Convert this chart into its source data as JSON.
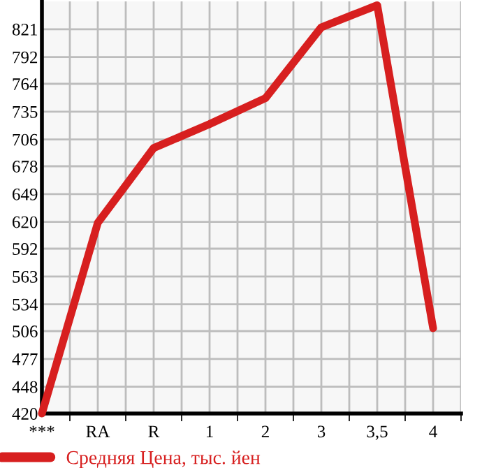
{
  "chart_data": {
    "type": "line",
    "categories": [
      "***",
      "RA",
      "R",
      "1",
      "2",
      "3",
      "3,5",
      "4"
    ],
    "series": [
      {
        "name": "Средняя Цена, тыс. йен",
        "color": "#d71f1f",
        "values": [
          420,
          619,
          697,
          722,
          749,
          823,
          846,
          509
        ]
      }
    ],
    "ylim": [
      420,
      850
    ],
    "yticks": [
      420,
      448,
      477,
      506,
      534,
      563,
      592,
      620,
      649,
      678,
      706,
      735,
      764,
      792,
      821
    ],
    "grid": true,
    "legend": "bottom",
    "marker": "none",
    "line_style": "solid"
  }
}
